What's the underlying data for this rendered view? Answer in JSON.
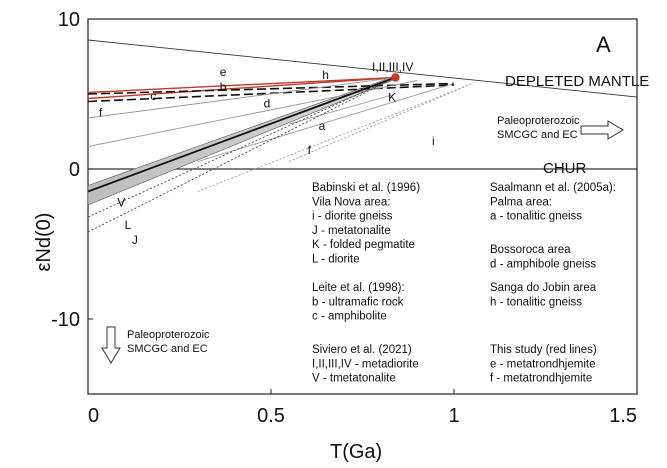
{
  "chart_data": {
    "type": "line",
    "panel_label": "A",
    "xlabel": "T(Ga)",
    "ylabel": "εNd(0)",
    "xlim": [
      0,
      1.5
    ],
    "ylim": [
      -15,
      10
    ],
    "x_ticks": [
      {
        "value": 0,
        "label": "0"
      },
      {
        "value": 0.5,
        "label": "0.5"
      },
      {
        "value": 1,
        "label": "1"
      },
      {
        "value": 1.5,
        "label": "1.5"
      }
    ],
    "y_ticks": [
      {
        "value": 10,
        "label": "10"
      },
      {
        "value": 0,
        "label": "0"
      },
      {
        "value": -10,
        "label": "-10"
      }
    ],
    "reference_lines": [
      {
        "label": "DEPLETED MANTLE",
        "points": [
          [
            0,
            8.6
          ],
          [
            1.5,
            4.8
          ]
        ]
      },
      {
        "label": "CHUR",
        "points": [
          [
            0,
            0
          ],
          [
            1.5,
            0
          ]
        ]
      }
    ],
    "annotations": [
      {
        "text": "I,II,III,IV",
        "x": 0.85,
        "y": 6.6
      },
      {
        "text": "Paleoproterozoic",
        "x": 1.22,
        "y": 3.8
      },
      {
        "text": "SMCGC and EC",
        "x": 1.22,
        "y": 2.8
      },
      {
        "text": "Paleoproterozoic",
        "x": 0.08,
        "y": -10.7
      },
      {
        "text": "SMCGC and EC",
        "x": 0.08,
        "y": -11.7
      }
    ],
    "series": [
      {
        "name": "e",
        "color": "#c0392b",
        "style": "solid",
        "x": [
          0,
          0.84
        ],
        "y": [
          5.1,
          6.1
        ],
        "label_at": [
          0.36,
          6.2
        ]
      },
      {
        "name": "h",
        "color": "#c0392b",
        "style": "solid",
        "x": [
          0,
          0.84
        ],
        "y": [
          4.7,
          6.1
        ],
        "label_at": [
          0.64,
          6.0
        ]
      },
      {
        "name": "b",
        "color": "#111111",
        "style": "dashed",
        "x": [
          0,
          1.0
        ],
        "y": [
          5.0,
          5.7
        ],
        "label_at": [
          0.36,
          5.2
        ]
      },
      {
        "name": "c",
        "color": "#111111",
        "style": "dashed",
        "x": [
          0,
          1.0
        ],
        "y": [
          4.5,
          5.6
        ],
        "label_at": [
          0.17,
          4.6
        ]
      },
      {
        "name": "f (this study)",
        "color": "#999999",
        "style": "solid",
        "x": [
          0,
          0.84
        ],
        "y": [
          3.4,
          6.1
        ],
        "label_at": [
          0.03,
          3.5
        ]
      },
      {
        "name": "d",
        "color": "#999999",
        "style": "solid",
        "x": [
          0,
          0.9
        ],
        "y": [
          1.5,
          5.9
        ],
        "label_at": [
          0.48,
          4.1
        ]
      },
      {
        "name": "K",
        "color": "#999999",
        "style": "solid",
        "x": [
          0.55,
          0.84
        ],
        "y": [
          3.0,
          5.0
        ],
        "label_at": [
          0.82,
          4.5
        ]
      },
      {
        "name": "a",
        "color": "#999999",
        "style": "solid",
        "x": [
          0.3,
          1.0
        ],
        "y": [
          0.5,
          5.7
        ],
        "label_at": [
          0.63,
          2.6
        ]
      },
      {
        "name": "i",
        "color": "#999999",
        "style": "dotted",
        "x": [
          0.55,
          1.05
        ],
        "y": [
          0.5,
          5.7
        ],
        "label_at": [
          0.94,
          1.6
        ]
      },
      {
        "name": "f (Saalmann)",
        "color": "#999999",
        "style": "dotted",
        "x": [
          0.3,
          1.05
        ],
        "y": [
          -1.5,
          5.7
        ],
        "label_at": [
          0.6,
          1.0
        ]
      },
      {
        "name": "V",
        "color": "#111111",
        "style": "solid",
        "x": [
          0,
          0.84
        ],
        "y": [
          -1.5,
          6.1
        ],
        "label_at": [
          0.08,
          -2.5
        ]
      },
      {
        "name": "L",
        "color": "#444444",
        "style": "dotted",
        "x": [
          0,
          0.84
        ],
        "y": [
          -3.2,
          6.1
        ],
        "label_at": [
          0.1,
          -4.0
        ]
      },
      {
        "name": "J",
        "color": "#444444",
        "style": "dotted",
        "x": [
          0,
          0.84
        ],
        "y": [
          -4.2,
          6.1
        ],
        "label_at": [
          0.12,
          -5.0
        ]
      }
    ],
    "red_point": {
      "x": 0.84,
      "y": 6.1,
      "color": "#c0392b"
    },
    "legend_blocks": [
      {
        "lines": [
          "Babinski et al. (1996)",
          "Vila Nova area:",
          "i - diorite gneiss",
          "J - metatonalite",
          "K - folded pegmatite",
          "L - diorite"
        ]
      },
      {
        "lines": [
          "Leite et al. (1998):",
          "b - ultramafic rock",
          "c - amphibolite"
        ]
      },
      {
        "lines": [
          "Siviero et al. (2021)",
          "I,II,III,IV - metadiorite",
          "V - tmetatonalite"
        ]
      },
      {
        "lines": [
          "Saalmann et al. (2005a):",
          "Palma area:",
          "a - tonalitic gneiss"
        ]
      },
      {
        "lines": [
          "Bossoroca area",
          "d - amphibole gneiss"
        ]
      },
      {
        "lines": [
          "Sanga do Jobin area",
          "h - tonalitic gneiss"
        ]
      },
      {
        "lines": [
          "This study (red lines)",
          "e - metatrondhjemite",
          "f - metatrondhjemite"
        ]
      }
    ]
  }
}
